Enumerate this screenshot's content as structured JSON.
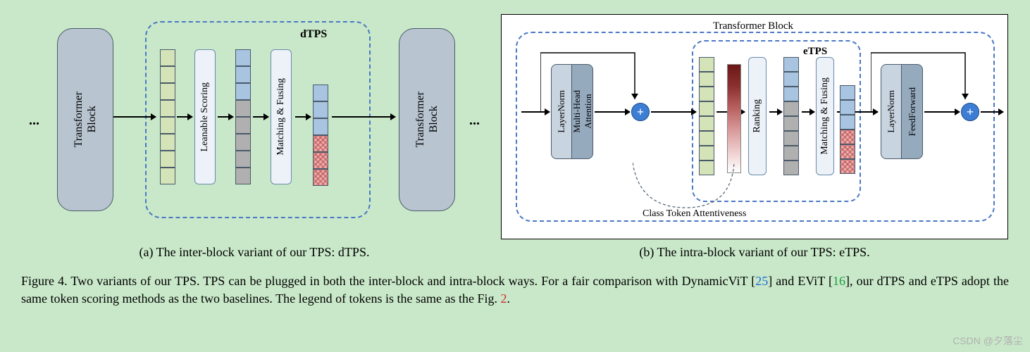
{
  "diagram_a": {
    "title": "dTPS",
    "transformer_block_left": "Transformer\nBlock",
    "transformer_block_right": "Transformer\nBlock",
    "learnable_scoring": "Leanable Scoring",
    "matching_fusing": "Matching & Fusing",
    "ellipsis": "...",
    "sub_caption": "(a) The inter-block variant of our TPS: dTPS.",
    "colors": {
      "background": "#c9e8c9",
      "transformer_block": "#b8c4d0",
      "dashed_border": "#4a78c4",
      "token_green": "#d4e4b8",
      "token_blue": "#a8c4e0",
      "token_gray": "#b0b0b0",
      "token_red": "#e8b0b0",
      "vbox_bg": "#ecf2f8"
    },
    "tokens": {
      "col1": [
        "green",
        "green",
        "green",
        "green",
        "green",
        "green",
        "green",
        "green"
      ],
      "col2": [
        "blue",
        "blue",
        "blue",
        "gray",
        "gray",
        "gray",
        "gray",
        "gray"
      ],
      "col3": [
        "blue",
        "blue",
        "blue",
        "red",
        "red",
        "red"
      ]
    }
  },
  "diagram_b": {
    "outer_title": "Transformer Block",
    "inner_title": "eTPS",
    "layernorm": "LayerNorm",
    "mha": "Multi-Head\nAttention",
    "ranking": "Ranking",
    "matching_fusing": "Matching & Fusing",
    "feedforward": "FeedForward",
    "class_attn": "Class Token Attentiveness",
    "plus": "+",
    "sub_caption": "(b) The intra-block variant of our TPS: eTPS.",
    "colors": {
      "panel_bg": "#ffffff",
      "dashed_border": "#4a78c4",
      "plus_bg": "#3d7ed4",
      "dbl_left": "#c8d4e0",
      "dbl_right": "#96aabe",
      "gradient_top": "#6b1818",
      "gradient_bottom": "#ffffff",
      "token_green": "#d4e4b8",
      "token_blue": "#a8c4e0",
      "token_gray": "#b0b0b0",
      "token_red": "#e8b0b0"
    },
    "tokens": {
      "col_green": [
        "green",
        "green",
        "green",
        "green",
        "green",
        "green",
        "green",
        "green"
      ],
      "col_sorted": [
        "blue",
        "blue",
        "blue",
        "gray",
        "gray",
        "gray",
        "gray",
        "gray"
      ],
      "col_out": [
        "blue",
        "blue",
        "blue",
        "red",
        "red",
        "red"
      ]
    }
  },
  "caption": {
    "prefix": "Figure 4. Two variants of our TPS. TPS can be plugged in both the inter-block and intra-block ways. For a fair comparison with DynamicViT [",
    "ref1": "25",
    "mid1": "] and EViT [",
    "ref2": "16",
    "mid2": "], our dTPS and eTPS adopt the same token scoring methods as the two baselines. The legend of tokens is the same as the Fig. ",
    "ref3": "2",
    "suffix": "."
  },
  "watermark": "CSDN @夕落尘"
}
